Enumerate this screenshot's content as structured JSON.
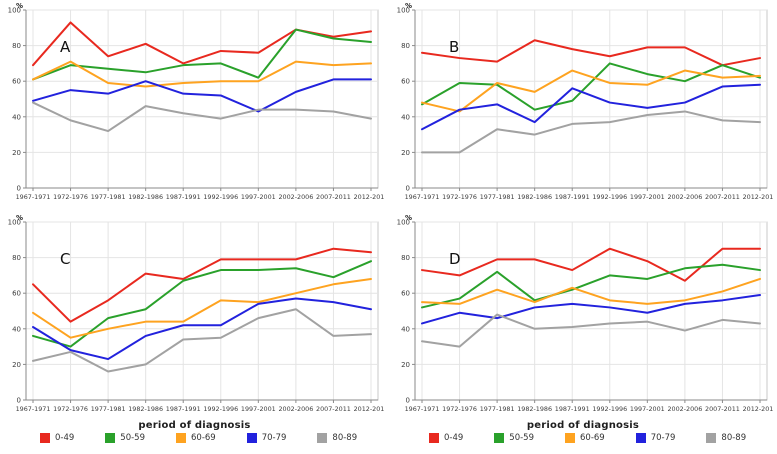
{
  "figure": {
    "ylabel": "%",
    "xlabel": "period of diagnosis",
    "yticks": [
      0,
      20,
      40,
      60,
      80,
      100
    ],
    "ylim": [
      0,
      100
    ],
    "categories": [
      "1967-1971",
      "1972-1976",
      "1977-1981",
      "1982-1986",
      "1987-1991",
      "1992-1996",
      "1997-2001",
      "2002-2006",
      "2007-2011",
      "2012-2016"
    ],
    "legend": [
      {
        "label": "0-49",
        "color": "#e8291f"
      },
      {
        "label": "50-59",
        "color": "#2aa12b"
      },
      {
        "label": "60-69",
        "color": "#fea320"
      },
      {
        "label": "70-79",
        "color": "#2222dd"
      },
      {
        "label": "80-89",
        "color": "#a2a2a2"
      }
    ],
    "colors": {
      "grid": "#e4e4e4",
      "box_border": "#c9c9c9",
      "spine": "#8a8a8a",
      "tick_text": "#3c3c3c",
      "panel_letter": "#111111"
    }
  },
  "chart_data": [
    {
      "type": "line",
      "title": "A",
      "xlabel": "period of diagnosis",
      "ylabel": "%",
      "ylim": [
        0,
        100
      ],
      "categories": [
        "1967-1971",
        "1972-1976",
        "1977-1981",
        "1982-1986",
        "1987-1991",
        "1992-1996",
        "1997-2001",
        "2002-2006",
        "2007-2011",
        "2012-2016"
      ],
      "series": [
        {
          "name": "0-49",
          "values": [
            69,
            93,
            74,
            81,
            70,
            77,
            76,
            89,
            85,
            88
          ]
        },
        {
          "name": "50-59",
          "values": [
            61,
            69,
            67,
            65,
            69,
            70,
            62,
            89,
            84,
            82
          ]
        },
        {
          "name": "60-69",
          "values": [
            61,
            71,
            59,
            57,
            59,
            60,
            60,
            71,
            69,
            70
          ]
        },
        {
          "name": "70-79",
          "values": [
            49,
            55,
            53,
            60,
            53,
            52,
            43,
            54,
            61,
            61
          ]
        },
        {
          "name": "80-89",
          "values": [
            48,
            38,
            32,
            46,
            42,
            39,
            44,
            44,
            43,
            39
          ]
        }
      ]
    },
    {
      "type": "line",
      "title": "B",
      "xlabel": "period of diagnosis",
      "ylabel": "%",
      "ylim": [
        0,
        100
      ],
      "categories": [
        "1967-1971",
        "1972-1976",
        "1977-1981",
        "1982-1986",
        "1987-1991",
        "1992-1996",
        "1997-2001",
        "2002-2006",
        "2007-2011",
        "2012-2016"
      ],
      "series": [
        {
          "name": "0-49",
          "values": [
            76,
            73,
            71,
            83,
            78,
            74,
            79,
            79,
            69,
            73
          ]
        },
        {
          "name": "50-59",
          "values": [
            47,
            59,
            58,
            44,
            49,
            70,
            64,
            60,
            69,
            62
          ]
        },
        {
          "name": "60-69",
          "values": [
            48,
            43,
            59,
            54,
            66,
            59,
            58,
            66,
            62,
            63
          ]
        },
        {
          "name": "70-79",
          "values": [
            33,
            44,
            47,
            37,
            56,
            48,
            45,
            48,
            57,
            58
          ]
        },
        {
          "name": "80-89",
          "values": [
            20,
            20,
            33,
            30,
            36,
            37,
            41,
            43,
            38,
            37
          ]
        }
      ]
    },
    {
      "type": "line",
      "title": "C",
      "xlabel": "period of diagnosis",
      "ylabel": "%",
      "ylim": [
        0,
        100
      ],
      "categories": [
        "1967-1971",
        "1972-1976",
        "1977-1981",
        "1982-1986",
        "1987-1991",
        "1992-1996",
        "1997-2001",
        "2002-2006",
        "2007-2011",
        "2012-2016"
      ],
      "series": [
        {
          "name": "0-49",
          "values": [
            65,
            44,
            56,
            71,
            68,
            79,
            79,
            79,
            85,
            83
          ]
        },
        {
          "name": "50-59",
          "values": [
            36,
            30,
            46,
            51,
            67,
            73,
            73,
            74,
            69,
            78
          ]
        },
        {
          "name": "60-69",
          "values": [
            49,
            35,
            40,
            44,
            44,
            56,
            55,
            60,
            65,
            68
          ]
        },
        {
          "name": "70-79",
          "values": [
            41,
            28,
            23,
            36,
            42,
            42,
            54,
            57,
            55,
            51
          ]
        },
        {
          "name": "80-89",
          "values": [
            22,
            27,
            16,
            20,
            34,
            35,
            46,
            51,
            36,
            37
          ]
        }
      ]
    },
    {
      "type": "line",
      "title": "D",
      "xlabel": "period of diagnosis",
      "ylabel": "%",
      "ylim": [
        0,
        100
      ],
      "categories": [
        "1967-1971",
        "1972-1976",
        "1977-1981",
        "1982-1986",
        "1987-1991",
        "1992-1996",
        "1997-2001",
        "2002-2006",
        "2007-2011",
        "2012-2016"
      ],
      "series": [
        {
          "name": "0-49",
          "values": [
            73,
            70,
            79,
            79,
            73,
            85,
            78,
            67,
            85,
            85
          ]
        },
        {
          "name": "50-59",
          "values": [
            52,
            57,
            72,
            56,
            62,
            70,
            68,
            74,
            76,
            73
          ]
        },
        {
          "name": "60-69",
          "values": [
            55,
            54,
            62,
            55,
            63,
            56,
            54,
            56,
            61,
            68
          ]
        },
        {
          "name": "70-79",
          "values": [
            43,
            49,
            46,
            52,
            54,
            52,
            49,
            54,
            56,
            59
          ]
        },
        {
          "name": "80-89",
          "values": [
            33,
            30,
            48,
            40,
            41,
            43,
            44,
            39,
            45,
            43
          ]
        }
      ]
    }
  ]
}
